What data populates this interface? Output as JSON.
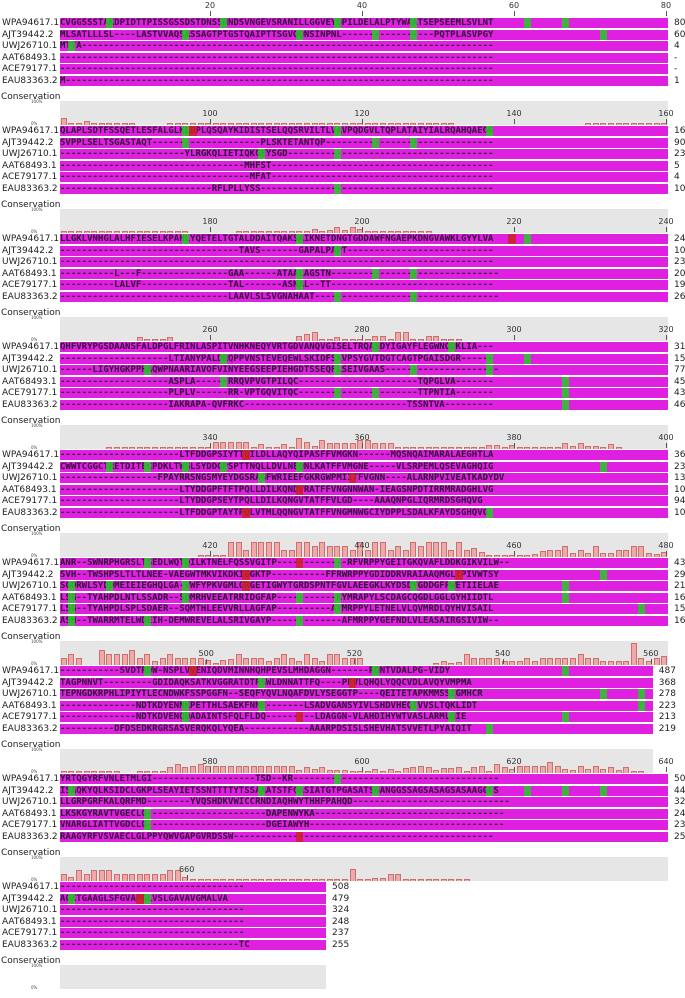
{
  "labels": [
    "WPA94617.1",
    "AJT39442.2",
    "UWJ26710.1",
    "AAT68493.1",
    "ACE79177.1",
    "EAU83363.2"
  ],
  "conservation_label": "Conservation",
  "pct_top": "100%",
  "pct_bottom": "0%",
  "colors": {
    "identical": "#e020e0",
    "similar": "#22cc22",
    "special": "#cc2222",
    "gap": "#e020e0",
    "bar": "#f0a8a8"
  },
  "blocks": [
    {
      "ticks": [
        "20",
        "40",
        "60",
        "80"
      ],
      "rows": [
        "CVGGSSSTAKDPIDTTPISSGSSDSTDNSSNNDSVNGEVSRANILLGGVEYQPILDELALPTYWAATSEPSEEMLSVLNT",
        "MLSATLLLSL----LASTVVAQSASSAGTPTGSTQAIPTTSGVQQNSINPNL-----------------PQTPLASVPGY",
        "MTTA----------------------------------------------------------------------------",
        "--------------------------------------------------------------------------------",
        "--------------------------------------------------------------------------------",
        "M-------------------------------------------------------------------------------"
      ],
      "counts": [
        "80",
        "60",
        "4",
        "-",
        "-",
        "1"
      ]
    },
    {
      "ticks": [
        "100",
        "120",
        "140",
        "160"
      ],
      "rows": [
        "QLAPLSDTFSSQETLESFALGLKLDPLQSQAYKIDISTSELQQSRVILTLVAVPQDGVLTQPLATAIYIALRQAHQAEGG",
        "SVPPLSELTSGASTAQT--------------------PLSKTETANTQP-------------------------------",
        "-----------------------YLRGKQLIETIQKGEYSGD--------------------------------------",
        "----------------------------------MHFST-----------------------------------------",
        "-----------------------------------MFAT-----------------------------------------",
        "----------------------------RFLPLLYSS-------------------------------------------"
      ],
      "counts": [
        "160",
        "90",
        "23",
        "5",
        "4",
        "10"
      ]
    },
    {
      "ticks": [
        "180",
        "200",
        "220",
        "240"
      ],
      "rows": [
        "LLGKLVNHGLALHFIESELKPAHLYQETELTGTALDDAITQAKSAIKNETDNGTGDDAWFNGAEPKDNGVAWKLGYYLVA",
        "---------------------------------TAVS-------GAPALPAPT---------------------------",
        "--------------------------------------------------------------------------------",
        "----------L---F----------------GAA------ATAALAGSTN-------------------------------",
        "----------LALVF----------------TAL-------ASNAL--TT------------------------------",
        "-------------------------------LAAVLSLSVGNAHAAT----------------------------------"
      ],
      "counts": [
        "240",
        "103",
        "23",
        "20",
        "19",
        "26"
      ]
    },
    {
      "ticks": [
        "260",
        "280",
        "300",
        "320"
      ],
      "rows": [
        "QHFVRYPGSDAANSFALDPGLFRINLASPITVNHKNEQYVRTGDVANQVGISELTRQASDYIGAYFLEGWNQDKLIA---",
        "--------------------LTIANYPALDRQPPVNSTEVEQEWLSKIDFSKVPSYGVTDGTCAGTPGAISDGR------",
        "------LIGYHGKPPHAQWPNAARIAVOFVINYEEGSEEPIEHGDTSSEQFLSEIVGAAS---------------------",
        "--------------------ASPLA------RRQVPVGTPILQC----------------------TQPGLVA-------",
        "--------------------PLPLV------RR-VPTGQVITQC----------------------TTPNTIA-------",
        "--------------------IAKRAPA-QVFRKC------------------------------TSSNTVA---------"
      ],
      "counts": [
        "317",
        "156",
        "77",
        "45",
        "43",
        "46"
      ]
    },
    {
      "ticks": [
        "340",
        "360",
        "380",
        "400"
      ],
      "rows": [
        "----------------------LTFDDGPSIYTTQILDLLAQYQIPASFFVMGKN------MQSNQAIMARALAEGHTLA",
        "CWWTCGGCTRETDITECPDKLTWGLSYDDGPSPTTNQLLDVLNEQNLKATFFVMGNE-----VLSRPEMLQSEVAGHQIG",
        "------------------FPAYRRSNGSMYEYDGSRAGFWRIEEFGKRGWPMIITFVGNN----ALARNPVIVEATKADYDV",
        "----------------------LTYDDGPFTFTPQLLDILKQNDVRATFFVNGNNWAN-IEAGSNPDTIRRMRADGHLVG",
        "----------------------LTYDDGPSEYTPQLLDILKQNGVTATFFVLGD----AAAQNPGLIQRMRDSGHQVG",
        "----------------------LTFDDGPTAYTPQLVTMLQQNGVTATFFVNGMNWGCIYDPPLSDALKFAYDSGHQVG"
      ],
      "counts": [
        "368",
        "231",
        "137",
        "101",
        "94",
        "102"
      ]
    },
    {
      "ticks": [
        "420",
        "440",
        "460",
        "480"
      ],
      "rows": [
        "ANR--SWNRPHGRSLTSEDLWQTQILKTNELFQSSVGITP-------------RFVRPPYGEITGKQVAFLDDKGIKVILW--",
        "SVH--TWSHPSLTLTLNEE-VAEGWTMKVIKDKIGGKTP----------FFRWRPPYGDIDDRVRAIAAQMGLTPIVWTSY",
        "SGORWLSYDDMEIEIEGHQLGA-VWFYPKVGMLGRGETIGWYTGRDSPNTFGVLAEEGKLKYDSDYGDDGFPWETIIELAE",
        "LSG--TYAHPDLNTLSSADR--SQMRHVEEATRRIDGFAP-----------KYMRAPYLSCDAGCQGDLGGLGYHIIDTL",
        "LSG--TYAHPDLSPLSDAER--SQMTHLEEVVRLLAGFAP----------AYMRPPYLETNELVLQVMRDLQYHVISAIL",
        "ASH--TWARRMTELWDEIH-DEMWREVELALSRIVGAYP-------------AFMRPPYGEFNDLVLEASAIRGSIVIW--"
      ],
      "counts": [
        "434",
        "299",
        "213",
        "166",
        "159",
        "167"
      ]
    },
    {
      "ticks": [
        "500",
        "520",
        "540",
        "560"
      ],
      "rows": [
        "-----------SVDTRDW-NSPLVVENIQDVMINNHQHPEVSLMHDAGGN-------RQNTVDALPG-VIDY",
        "TAGPNNVT---------GDIDAQKSATKVGGRATDTRSWLDNNATTFQ----PFVLQHQLYQQCVDLAVQYVMPMA",
        "TEPNGDKRPHLIPIYTLECNDWKFSSPGGFN--SEQFYQVLNQAFDVLYSEGGTP----QEITETAPKMMSSIGMHCR",
        "--------------NDTKDYENNKPETTHLSAEKFNNE-------LSADVGANSYIVLSHDVHEQTVVSLTQKLIDT",
        "--------------NDTKDVENQDADAINTSFQLFLDQ---------LDAGGN-VLAHDIHYWTVASLARMLQIE",
        "----------DFDSEDKRGRSASVERQKQLYQEA------------AAARPDSISLSHEVHATSVVETLPYAIQIT"
      ],
      "counts": [
        "487",
        "368",
        "278",
        "223",
        "213",
        "219"
      ]
    },
    {
      "ticks": [
        "580",
        "600",
        "620",
        "640"
      ],
      "rows": [
        "YRTQGYRFVNLETMLGI-------------------TSD--KR--------------------------------------",
        "ISAQKYQLKSIDCLGKPLSEAYIETSSNTTTTYTSSAAATSTFGASIATGTPGASATSGANGGSSAGSASAGSASAAGGGS",
        "LLGRPGRFKALQRFMD--------YVQSHDKVWICCRNDIAQHWYTHHFPAHQD-----------------------------",
        "LKSKGYRAVTVGECLG----------------------DAPENWYKA-----------------------------------",
        "VNARGLIATTVGDCLG----------------------DGEIAWYH------------------------------------",
        "RAAGYRFVSVAECLGLPPYQWVGAPGVRDSSW------------------------------------------------"
      ],
      "counts": [
        "508",
        "448",
        "324",
        "248",
        "237",
        "253"
      ]
    },
    {
      "ticks": [
        "660"
      ],
      "rows": [
        "----------------------------------",
        "AGKTGAAGLSFGVAPGLVSLGAVAVGMALVA",
        "----------------------------------",
        "----------------------------------",
        "----------------------------------",
        "---------------------------------TC"
      ],
      "counts": [
        "508",
        "479",
        "324",
        "248",
        "237",
        "255"
      ]
    }
  ]
}
